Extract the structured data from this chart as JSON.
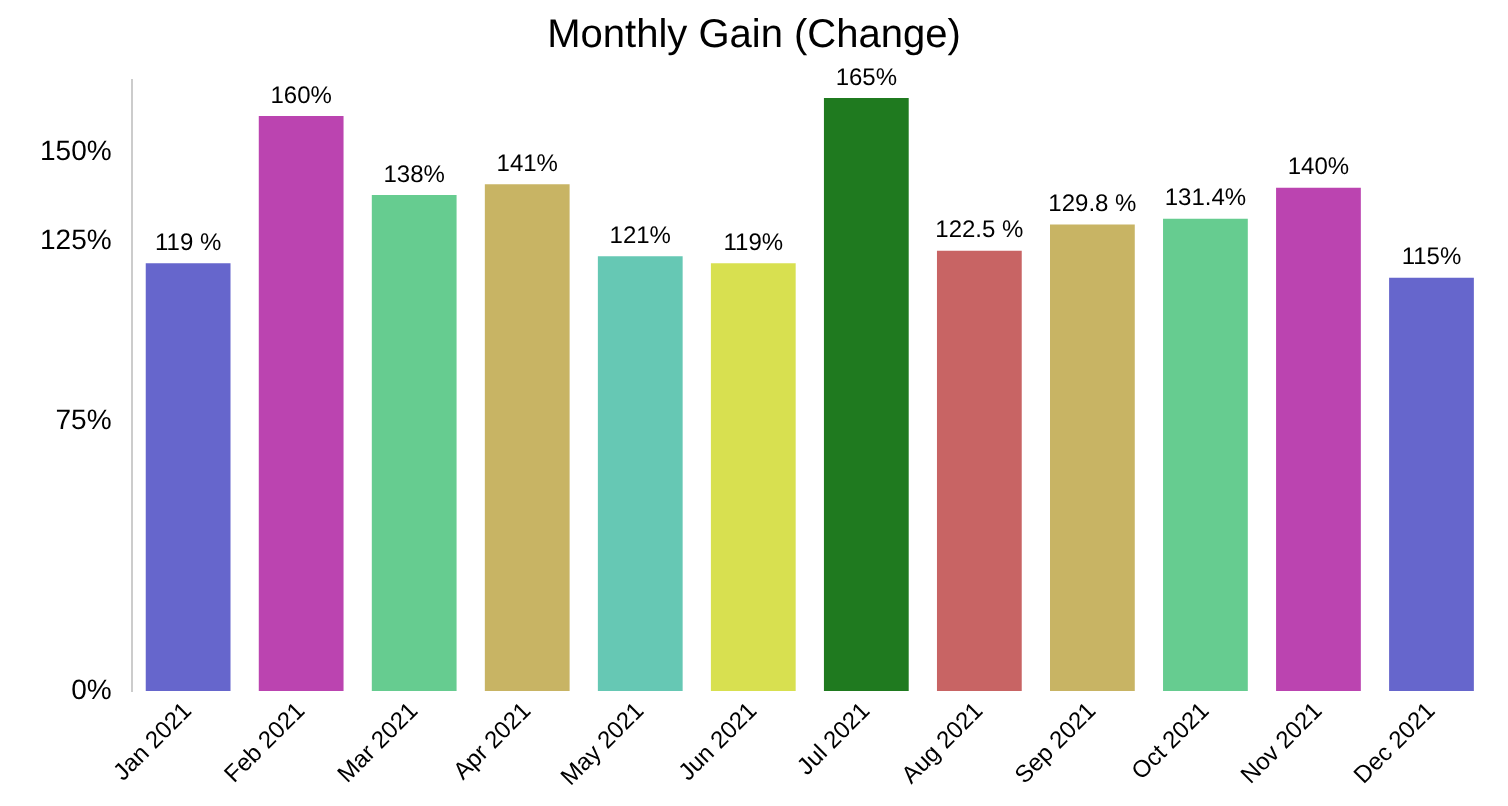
{
  "chart_data": {
    "type": "bar",
    "title": "Monthly Gain (Change)",
    "categories": [
      "Jan 2021",
      "Feb 2021",
      "Mar 2021",
      "Apr 2021",
      "May 2021",
      "Jun 2021",
      "Jul 2021",
      "Aug 2021",
      "Sep 2021",
      "Oct 2021",
      "Nov 2021",
      "Dec 2021"
    ],
    "values": [
      119,
      160,
      138,
      141,
      121,
      119,
      165,
      122.5,
      129.8,
      131.4,
      140,
      115
    ],
    "value_labels": [
      "119 %",
      "160%",
      "138%",
      "141%",
      "121%",
      "119%",
      "165%",
      "122.5 %",
      "129.8 %",
      "131.4%",
      "140%",
      "115%"
    ],
    "colors": [
      "#6666cc",
      "#bb44b0",
      "#66cc90",
      "#c8b464",
      "#66c8b4",
      "#d8e050",
      "#1f7a1f",
      "#c86464",
      "#c8b464",
      "#66cc90",
      "#bb44b0",
      "#6666cc"
    ],
    "yticks": [
      {
        "value": 0,
        "label": "0%"
      },
      {
        "value": 75,
        "label": "75%"
      },
      {
        "value": 125,
        "label": "125%"
      },
      {
        "value": 150,
        "label": "150%"
      }
    ],
    "ylim": [
      0,
      170
    ],
    "grid": false,
    "legend": false
  }
}
